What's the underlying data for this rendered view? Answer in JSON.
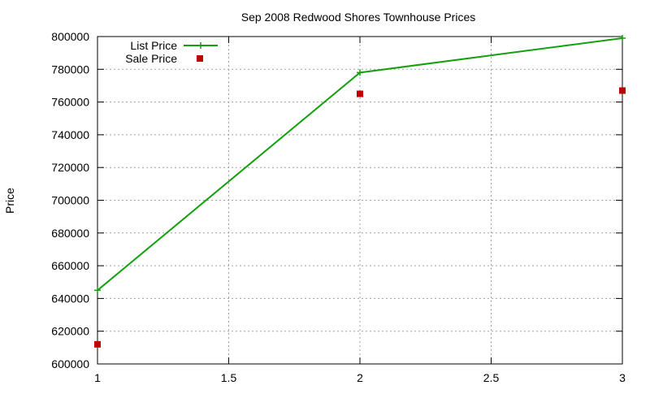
{
  "chart_data": {
    "type": "line",
    "title": "Sep 2008 Redwood Shores Townhouse Prices",
    "xlabel": "",
    "ylabel": "Price",
    "xlim": [
      1,
      3
    ],
    "ylim": [
      600000,
      800000
    ],
    "xticks": [
      "1",
      "1.5",
      "2",
      "2.5",
      "3"
    ],
    "xtick_values": [
      1,
      1.5,
      2,
      2.5,
      3
    ],
    "yticks": [
      "600000",
      "620000",
      "640000",
      "660000",
      "680000",
      "700000",
      "720000",
      "740000",
      "760000",
      "780000",
      "800000"
    ],
    "ytick_values": [
      600000,
      620000,
      640000,
      660000,
      680000,
      700000,
      720000,
      740000,
      760000,
      780000,
      800000
    ],
    "grid": true,
    "legend_position": "top-left",
    "series": [
      {
        "name": "List Price",
        "style": "linespoints",
        "marker": "plus",
        "color": "#14a00e",
        "x": [
          1,
          2,
          3
        ],
        "y": [
          645000,
          778000,
          799000
        ]
      },
      {
        "name": "Sale Price",
        "style": "points",
        "marker": "square",
        "color": "#c00000",
        "x": [
          1,
          2,
          3
        ],
        "y": [
          612000,
          765000,
          767000
        ]
      }
    ]
  }
}
